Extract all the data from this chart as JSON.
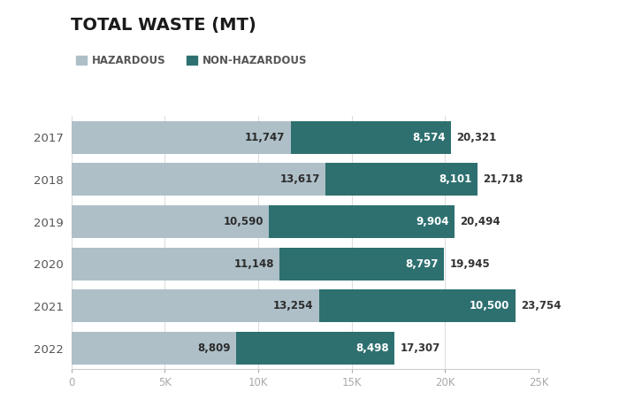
{
  "title": "TOTAL WASTE (MT)",
  "years": [
    "2017",
    "2018",
    "2019",
    "2020",
    "2021",
    "2022"
  ],
  "hazardous": [
    11747,
    13617,
    10590,
    11148,
    13254,
    8809
  ],
  "non_hazardous": [
    8574,
    8101,
    9904,
    8797,
    10500,
    8498
  ],
  "totals": [
    20321,
    21718,
    20494,
    19945,
    23754,
    17307
  ],
  "color_hazardous": "#aebfc8",
  "color_non_hazardous": "#2e7070",
  "legend_hazardous": "HAZARDOUS",
  "legend_non_hazardous": "NON-HAZARDOUS",
  "xlim": [
    0,
    25000
  ],
  "xticks": [
    0,
    5000,
    10000,
    15000,
    20000,
    25000
  ],
  "xtick_labels": [
    "0",
    "5K",
    "10K",
    "15K",
    "20K",
    "25K"
  ],
  "background_color": "#ffffff",
  "title_fontsize": 14,
  "bar_height": 0.78,
  "label_fontsize": 8.5,
  "axis_fontsize": 8.5,
  "year_fontsize": 9.5,
  "total_fontsize": 8.5
}
